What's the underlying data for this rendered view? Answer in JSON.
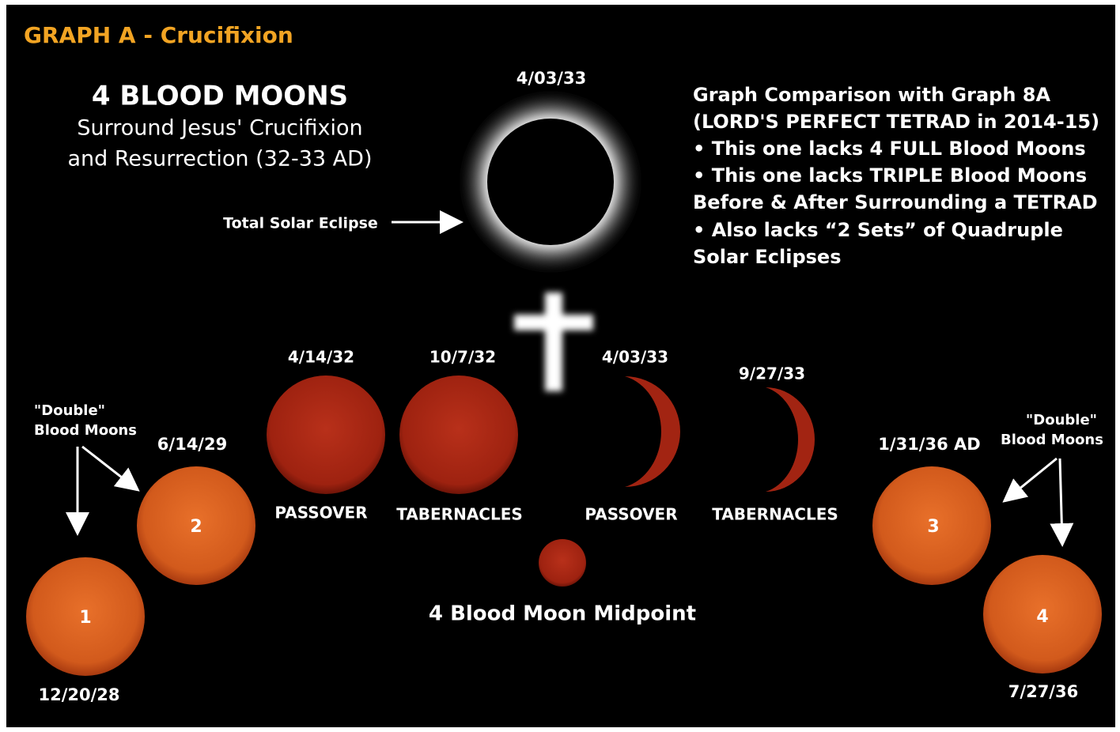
{
  "title": "GRAPH A - Crucifixion",
  "heading": {
    "title": "4 BLOOD MOONS",
    "lines": [
      "Surround Jesus' Crucifixion",
      "and Resurrection (32-33 AD)"
    ]
  },
  "eclipse": {
    "date": "4/03/33",
    "label": "Total Solar Eclipse"
  },
  "comparison": [
    "Graph Comparison with Graph 8A",
    "(LORD'S PERFECT TETRAD in 2014-15)",
    "• This one lacks 4 FULL Blood Moons",
    "• This one lacks TRIPLE Blood Moons",
    "Before & After Surrounding a TETRAD",
    "• Also lacks “2 Sets” of Quadruple",
    "Solar Eclipses"
  ],
  "tetrad": [
    {
      "date": "4/14/32",
      "label": "PASSOVER"
    },
    {
      "date": "10/7/32",
      "label": "TABERNACLES"
    },
    {
      "date": "4/03/33",
      "label": "PASSOVER"
    },
    {
      "date": "9/27/33",
      "label": "TABERNACLES"
    }
  ],
  "outer_moons": [
    {
      "number": "1",
      "date": "12/20/28"
    },
    {
      "number": "2",
      "date": "6/14/29"
    },
    {
      "number": "3",
      "date": "1/31/36 AD"
    },
    {
      "number": "4",
      "date": "7/27/36"
    }
  ],
  "double_left": [
    "\"Double\"",
    "Blood Moons"
  ],
  "double_right": [
    "\"Double\"",
    "Blood Moons"
  ],
  "midpoint": "4 Blood Moon Midpoint"
}
